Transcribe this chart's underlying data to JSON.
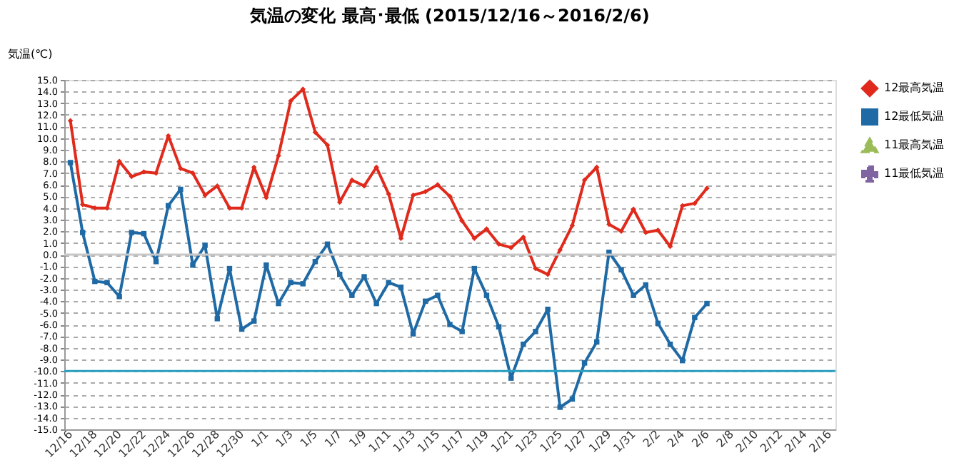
{
  "chart_data": {
    "type": "line",
    "title": "気温の変化  最高･最低  (2015/12/16～2016/2/6)",
    "ylabel": "気温(℃)",
    "categories": [
      "12/16",
      null,
      "12/18",
      null,
      "12/20",
      null,
      "12/22",
      null,
      "12/24",
      null,
      "12/26",
      null,
      "12/28",
      null,
      "12/30",
      null,
      "1/1",
      null,
      "1/3",
      null,
      "1/5",
      null,
      "1/7",
      null,
      "1/9",
      null,
      "1/11",
      null,
      "1/13",
      null,
      "1/15",
      null,
      "1/17",
      null,
      "1/19",
      null,
      "1/21",
      null,
      "1/23",
      null,
      "1/25",
      null,
      "1/27",
      null,
      "1/29",
      null,
      "1/31",
      null,
      "2/2",
      null,
      "2/4",
      null,
      "2/6",
      null,
      "2/8",
      null,
      "2/10",
      null,
      "2/12",
      null,
      "2/14",
      null,
      "2/16"
    ],
    "series": [
      {
        "name": "12最高気温",
        "color": "#e02a1c",
        "marker": "diamond",
        "line_style": "solid",
        "values": [
          11.5,
          4.3,
          4.0,
          4.0,
          8.0,
          6.7,
          7.1,
          7.0,
          10.2,
          7.4,
          7.0,
          5.1,
          5.9,
          4.0,
          4.0,
          7.5,
          4.9,
          8.5,
          13.2,
          14.2,
          10.5,
          9.4,
          4.5,
          6.4,
          5.9,
          7.5,
          5.2,
          1.4,
          5.1,
          5.4,
          6.0,
          5.0,
          2.9,
          1.4,
          2.2,
          0.9,
          0.6,
          1.5,
          -1.2,
          -1.7,
          0.4,
          2.5,
          6.4,
          7.5,
          2.6,
          2.0,
          3.9,
          1.9,
          2.1,
          0.7,
          4.2,
          4.4,
          5.7,
          null,
          null,
          null,
          null,
          null,
          null,
          null,
          null,
          null,
          null
        ]
      },
      {
        "name": "12最低気温",
        "color": "#1f6aa5",
        "marker": "square",
        "line_style": "solid",
        "values": [
          7.9,
          1.9,
          -2.3,
          -2.4,
          -3.6,
          1.9,
          1.8,
          -0.6,
          4.2,
          5.6,
          -0.9,
          0.8,
          -5.5,
          -1.2,
          -6.4,
          -5.7,
          -0.9,
          -4.2,
          -2.4,
          -2.5,
          -0.6,
          0.9,
          -1.7,
          -3.5,
          -1.9,
          -4.2,
          -2.4,
          -2.8,
          -6.8,
          -4.0,
          -3.5,
          -6.0,
          -6.6,
          -1.2,
          -3.5,
          -6.2,
          -10.6,
          -7.7,
          -6.6,
          -4.7,
          -13.1,
          -12.4,
          -9.3,
          -7.5,
          0.2,
          -1.3,
          -3.5,
          -2.6,
          -5.9,
          -7.7,
          -9.1,
          -5.4,
          -4.2,
          null,
          null,
          null,
          null,
          null,
          null,
          null,
          null,
          null,
          null
        ]
      },
      {
        "name": "11最高気温",
        "color": "#9bbb59",
        "marker": "triangle",
        "line_style": "dashed",
        "values": [
          null,
          null,
          null,
          null,
          null,
          null,
          null,
          null,
          null,
          null,
          null,
          null,
          null,
          null,
          null,
          null,
          null,
          null,
          null,
          null,
          null,
          null,
          null,
          null,
          null,
          null,
          null,
          null,
          null,
          null,
          null,
          null,
          null,
          null,
          null,
          null,
          null,
          null,
          null,
          null,
          null,
          null,
          null,
          null,
          null,
          null,
          null,
          null,
          null,
          null,
          null,
          null,
          null,
          null,
          null,
          null,
          null,
          null,
          null,
          null,
          null,
          null,
          null
        ]
      },
      {
        "name": "11最低気温",
        "color": "#8064a2",
        "marker": "cross",
        "line_style": "dashed",
        "values": [
          null,
          null,
          null,
          null,
          null,
          null,
          null,
          null,
          null,
          null,
          null,
          null,
          null,
          null,
          null,
          null,
          null,
          null,
          null,
          null,
          null,
          null,
          null,
          null,
          null,
          null,
          null,
          null,
          null,
          null,
          null,
          null,
          null,
          null,
          null,
          null,
          null,
          null,
          null,
          null,
          null,
          null,
          null,
          null,
          null,
          null,
          null,
          null,
          null,
          null,
          null,
          null,
          null,
          null,
          null,
          null,
          null,
          null,
          null,
          null,
          null,
          null,
          null
        ]
      }
    ],
    "ylim": [
      -15,
      15
    ],
    "yticks": [
      {
        "value": 15,
        "label": "15.0"
      },
      {
        "value": 14,
        "label": "14.0"
      },
      {
        "value": 13,
        "label": "13.0"
      },
      {
        "value": 12,
        "label": "12.0"
      },
      {
        "value": 11,
        "label": "11.0"
      },
      {
        "value": 10,
        "label": "10.0"
      },
      {
        "value": 9,
        "label": "9.0"
      },
      {
        "value": 8,
        "label": "8.0"
      },
      {
        "value": 7,
        "label": "7.0"
      },
      {
        "value": 6,
        "label": "6.0"
      },
      {
        "value": 5,
        "label": "5.0"
      },
      {
        "value": 4,
        "label": "4.0"
      },
      {
        "value": 3,
        "label": "3.0"
      },
      {
        "value": 2,
        "label": "2.0"
      },
      {
        "value": 1,
        "label": "1.0"
      },
      {
        "value": 0,
        "label": "0.0"
      },
      {
        "value": -1,
        "label": "-1.0"
      },
      {
        "value": -2,
        "label": "-2.0"
      },
      {
        "value": -3,
        "label": "-3.0"
      },
      {
        "value": -4,
        "label": "-4.0"
      },
      {
        "value": -5,
        "label": "-5.0"
      },
      {
        "value": -6,
        "label": "-6.0"
      },
      {
        "value": -7,
        "label": "-7.0"
      },
      {
        "value": -8,
        "label": "-8.0"
      },
      {
        "value": -9,
        "label": "-9.0"
      },
      {
        "value": -10,
        "label": "-10.0"
      },
      {
        "value": -11,
        "label": "-11.0"
      },
      {
        "value": -12,
        "label": "-12.0"
      },
      {
        "value": -13,
        "label": "-13.0"
      },
      {
        "value": -14,
        "label": "-14.0"
      },
      {
        "value": -15,
        "label": "-15.0"
      }
    ],
    "ref_lines": [
      {
        "axis": "y",
        "value": 0,
        "color": "#c8c8c8"
      },
      {
        "axis": "y",
        "value": -10,
        "color": "#2a9fc0"
      }
    ],
    "grid": "y",
    "legend": "right"
  }
}
